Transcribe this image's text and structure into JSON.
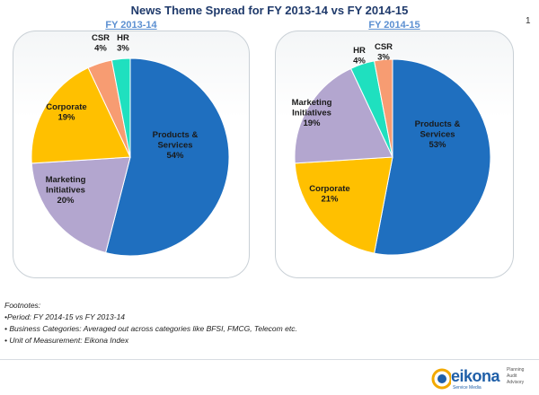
{
  "title": "News Theme Spread for FY 2013-14 vs FY 2014-15",
  "page_number": "1",
  "chart_data": [
    {
      "type": "pie",
      "title": "FY 2013-14",
      "slices": [
        {
          "name": "Products & Services",
          "value": 54,
          "label": "54%",
          "color": "#1f6fbf"
        },
        {
          "name": "Marketing Initiatives",
          "value": 20,
          "label": "20%",
          "color": "#b3a6cf"
        },
        {
          "name": "Corporate",
          "value": 19,
          "label": "19%",
          "color": "#ffc000"
        },
        {
          "name": "CSR",
          "value": 4,
          "label": "4%",
          "color": "#f79c72"
        },
        {
          "name": "HR",
          "value": 3,
          "label": "3%",
          "color": "#1fe0bf"
        }
      ]
    },
    {
      "type": "pie",
      "title": "FY 2014-15",
      "slices": [
        {
          "name": "Products & Services",
          "value": 53,
          "label": "53%",
          "color": "#1f6fbf"
        },
        {
          "name": "Corporate",
          "value": 21,
          "label": "21%",
          "color": "#ffc000"
        },
        {
          "name": "Marketing Initiatives",
          "value": 19,
          "label": "19%",
          "color": "#b3a6cf"
        },
        {
          "name": "HR",
          "value": 4,
          "label": "4%",
          "color": "#1fe0bf"
        },
        {
          "name": "CSR",
          "value": 3,
          "label": "3%",
          "color": "#f79c72"
        }
      ]
    }
  ],
  "footnotes": {
    "heading": "Footnotes:",
    "items": [
      "•Period: FY 2014-15 vs FY 2013-14",
      "• Business Categories: Averaged out across categories like BFSI, FMCG, Telecom etc.",
      "• Unit of Measurement: Eikona Index"
    ]
  },
  "logo": {
    "name": "eikona",
    "tagline": "Service Media",
    "side_lines": [
      "Planning",
      "Audit",
      "Advisory"
    ]
  }
}
